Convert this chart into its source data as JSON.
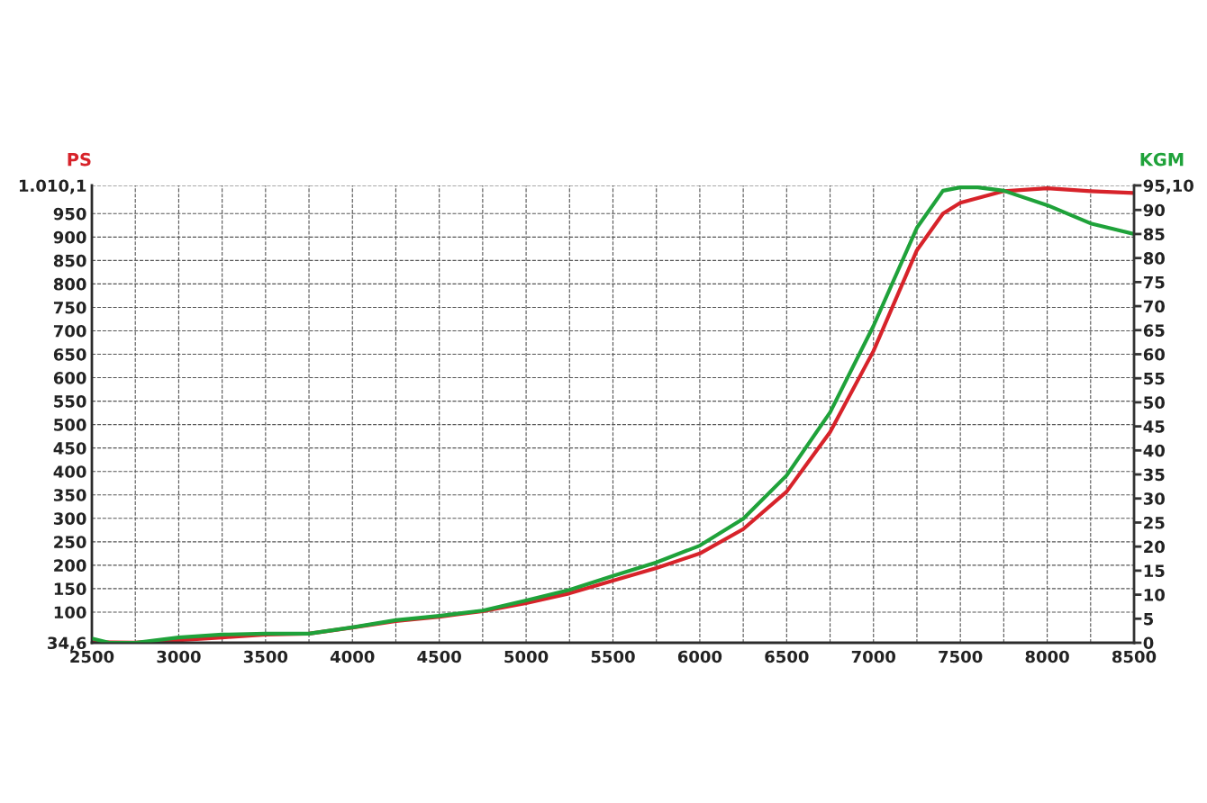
{
  "chart_data": {
    "type": "line",
    "ylabel": "PS",
    "y2label": "KGM",
    "xlim": [
      2500,
      8500
    ],
    "xticks": [
      2500,
      {
        "value": 2750,
        "label": null
      },
      3000,
      {
        "value": 3250,
        "label": null
      },
      3500,
      {
        "value": 3750,
        "label": null
      },
      4000,
      {
        "value": 4250,
        "label": null
      },
      4500,
      {
        "value": 4750,
        "label": null
      },
      5000,
      {
        "value": 5250,
        "label": null
      },
      5500,
      {
        "value": 5750,
        "label": null
      },
      6000,
      {
        "value": 6250,
        "label": null
      },
      6500,
      {
        "value": 6750,
        "label": null
      },
      7000,
      {
        "value": 7250,
        "label": null
      },
      7500,
      {
        "value": 7750,
        "label": null
      },
      8000,
      {
        "value": 8250,
        "label": null
      },
      8500
    ],
    "ylim": [
      34.6,
      1010.1
    ],
    "yticks": [
      {
        "value": 34.6,
        "label": "34,6"
      },
      100,
      150,
      200,
      250,
      300,
      350,
      400,
      450,
      500,
      550,
      600,
      650,
      700,
      750,
      800,
      850,
      900,
      950,
      {
        "value": 1010.1,
        "label": "1.010,1"
      }
    ],
    "y2lim": [
      0,
      95.1
    ],
    "y2ticks": [
      0,
      5,
      10,
      15,
      20,
      25,
      30,
      35,
      40,
      45,
      50,
      55,
      60,
      65,
      70,
      75,
      80,
      85,
      90,
      {
        "value": 95.1,
        "label": "95,10"
      }
    ],
    "grid": true,
    "series": [
      {
        "color": "#d7232a",
        "x": [
          2500,
          2750,
          3000,
          3250,
          3500,
          3750,
          4000,
          4250,
          4500,
          4750,
          5000,
          5250,
          5500,
          5750,
          6000,
          6250,
          6500,
          6750,
          7000,
          7250,
          7400,
          7500,
          7750,
          8000,
          8250,
          8500
        ],
        "values": [
          36,
          35,
          40,
          46,
          52,
          54,
          67,
          81,
          90,
          102,
          119,
          140,
          167,
          194,
          225,
          277,
          357,
          484,
          657,
          872,
          950,
          973,
          998,
          1004,
          998,
          994
        ]
      },
      {
        "color": "#1fa23a",
        "axis": "y2",
        "x": [
          2500,
          2600,
          2750,
          3000,
          3250,
          3500,
          3750,
          4000,
          4250,
          4500,
          4750,
          5000,
          5250,
          5500,
          5750,
          6000,
          6250,
          6500,
          6750,
          7000,
          7250,
          7400,
          7500,
          7600,
          7750,
          8000,
          8250,
          8500
        ],
        "values": [
          0.9,
          0,
          0,
          1.1,
          1.7,
          1.9,
          1.9,
          3.2,
          4.7,
          5.6,
          6.7,
          8.8,
          11.0,
          13.9,
          16.7,
          20.2,
          25.8,
          34.8,
          47.9,
          65.9,
          86.3,
          94.0,
          94.7,
          94.7,
          94.0,
          91.0,
          87.2,
          85.0
        ]
      }
    ]
  }
}
